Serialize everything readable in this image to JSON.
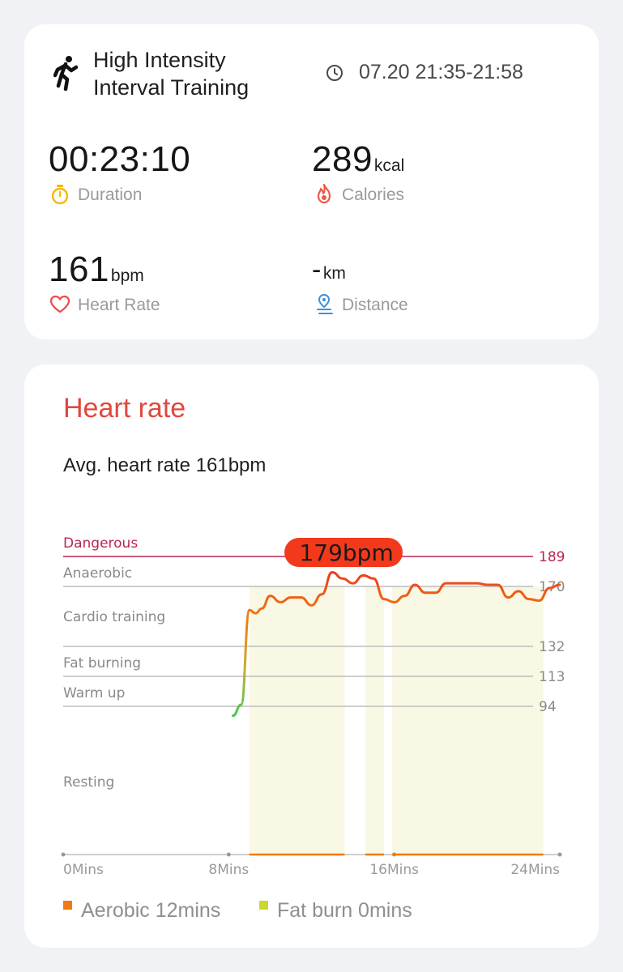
{
  "workout": {
    "title_line1": "High Intensity",
    "title_line2": "Interval Training",
    "time_range": "07.20 21:35-21:58",
    "icon": "running-figure-icon"
  },
  "stats": {
    "duration": {
      "value": "00:23:10",
      "label": "Duration",
      "icon": "stopwatch-icon"
    },
    "calories": {
      "value": "289",
      "unit": "kcal",
      "label": "Calories",
      "icon": "flame-icon"
    },
    "heart_rate": {
      "value": "161",
      "unit": "bpm",
      "label": "Heart Rate",
      "icon": "heart-outline-icon"
    },
    "distance": {
      "value": "-",
      "unit": "km",
      "label": "Distance",
      "icon": "location-pin-icon"
    }
  },
  "heart_rate_section": {
    "title": "Heart rate",
    "average": "Avg. heart rate 161bpm",
    "peak_tooltip": "179bpm"
  },
  "chart_data": {
    "type": "line",
    "x_unit": "mins",
    "xlim": [
      0,
      24
    ],
    "ylim": [
      50,
      195
    ],
    "x_tick_labels": [
      "0Mins",
      "8Mins",
      "16Mins",
      "24Mins"
    ],
    "x_ticks": [
      0,
      8,
      16,
      24
    ],
    "zones": [
      {
        "name": "Dangerous",
        "threshold": 189,
        "color": "#b8274f"
      },
      {
        "name": "Anaerobic",
        "threshold": 170,
        "color": "#bdbdbd"
      },
      {
        "name": "Cardio training",
        "threshold": 132,
        "color": "#bdbdbd"
      },
      {
        "name": "Fat burning",
        "threshold": 113,
        "color": "#bdbdbd"
      },
      {
        "name": "Warm up",
        "threshold": 94,
        "color": "#bdbdbd"
      },
      {
        "name": "Resting",
        "threshold": null,
        "color": "#bdbdbd"
      }
    ],
    "series": [
      {
        "x": [
          8.2,
          8.6,
          9.0,
          9.3,
          9.6,
          10.0,
          10.5,
          11.0,
          11.5,
          12.0,
          12.5,
          13.0,
          13.5,
          14.0,
          14.5,
          15.0,
          15.5,
          16.0,
          16.5,
          17.0,
          17.5,
          18.0,
          18.5,
          19.0,
          19.5,
          20.0,
          20.5,
          21.0,
          21.5,
          22.0,
          22.5,
          23.0,
          23.5,
          24.0
        ],
        "y": [
          88,
          95,
          155,
          153,
          156,
          164,
          160,
          163,
          163,
          158,
          165,
          179,
          175,
          172,
          177,
          175,
          162,
          160,
          164,
          171,
          166,
          166,
          172,
          172,
          172,
          172,
          171,
          171,
          163,
          167,
          162,
          161,
          169,
          171
        ]
      }
    ],
    "peak": {
      "x": 13.8,
      "y": 179,
      "label": "179bpm"
    },
    "shaded_regions": [
      [
        9.0,
        13.6
      ],
      [
        14.6,
        15.5
      ],
      [
        15.9,
        23.2
      ]
    ],
    "legend": [
      {
        "label": "Aerobic 12mins",
        "color": "#f07a13"
      },
      {
        "label": "Fat burn 0mins",
        "color": "#c9d92f"
      }
    ]
  }
}
